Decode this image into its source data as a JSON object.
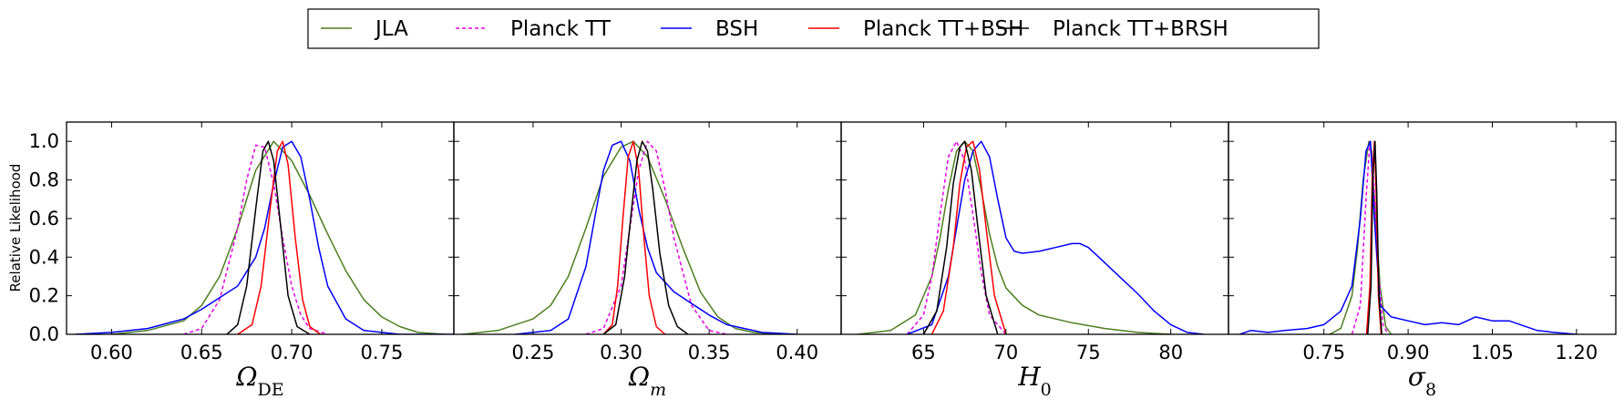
{
  "legend": [
    {
      "name": "JLA",
      "color": "#4d7f1f",
      "dashed": false
    },
    {
      "name": "Planck TT",
      "color": "#e600e6",
      "dashed": true
    },
    {
      "name": "BSH",
      "color": "#0000ff",
      "dashed": false
    },
    {
      "name": "Planck TT+BSH",
      "color": "#ff0000",
      "dashed": false
    },
    {
      "name": "Planck TT+BRSH",
      "color": "#000000",
      "dashed": false
    }
  ],
  "ylabel": "Relative Likelihood",
  "chart_data": [
    {
      "type": "line",
      "xlabel": "Ω_DE",
      "xlabel_main": "Ω",
      "xlabel_sub": "DE",
      "xlim": [
        0.575,
        0.79
      ],
      "ylim": [
        0,
        1.1
      ],
      "xticks": [
        "0.60",
        "0.65",
        "0.70",
        "0.75"
      ],
      "yticks": [
        "0.0",
        "0.2",
        "0.4",
        "0.6",
        "0.8",
        "1.0"
      ],
      "series": [
        {
          "name": "JLA",
          "x": [
            0.6,
            0.62,
            0.64,
            0.65,
            0.66,
            0.67,
            0.68,
            0.69,
            0.7,
            0.71,
            0.72,
            0.73,
            0.74,
            0.75,
            0.76,
            0.77,
            0.785
          ],
          "y": [
            0.0,
            0.02,
            0.07,
            0.15,
            0.3,
            0.55,
            0.85,
            1.0,
            0.9,
            0.72,
            0.52,
            0.33,
            0.18,
            0.09,
            0.04,
            0.01,
            0.0
          ]
        },
        {
          "name": "Planck TT",
          "x": [
            0.64,
            0.65,
            0.66,
            0.67,
            0.675,
            0.68,
            0.685,
            0.69,
            0.695,
            0.7,
            0.705,
            0.71,
            0.72
          ],
          "y": [
            0.0,
            0.03,
            0.18,
            0.55,
            0.8,
            0.98,
            0.97,
            0.78,
            0.5,
            0.25,
            0.1,
            0.03,
            0.0
          ]
        },
        {
          "name": "BSH",
          "x": [
            0.58,
            0.6,
            0.62,
            0.64,
            0.65,
            0.66,
            0.67,
            0.68,
            0.685,
            0.69,
            0.695,
            0.7,
            0.705,
            0.71,
            0.715,
            0.72,
            0.73,
            0.74,
            0.76,
            0.79
          ],
          "y": [
            0.0,
            0.01,
            0.03,
            0.08,
            0.13,
            0.19,
            0.25,
            0.4,
            0.55,
            0.78,
            0.97,
            1.0,
            0.92,
            0.7,
            0.45,
            0.25,
            0.08,
            0.02,
            0.0,
            0.0
          ]
        },
        {
          "name": "Planck TT+BSH",
          "x": [
            0.67,
            0.678,
            0.683,
            0.688,
            0.692,
            0.695,
            0.698,
            0.702,
            0.706,
            0.71,
            0.716
          ],
          "y": [
            0.0,
            0.05,
            0.25,
            0.65,
            0.95,
            1.0,
            0.88,
            0.5,
            0.18,
            0.04,
            0.0
          ]
        },
        {
          "name": "Planck TT+BRSH",
          "x": [
            0.664,
            0.67,
            0.675,
            0.68,
            0.684,
            0.687,
            0.69,
            0.694,
            0.698,
            0.703,
            0.71
          ],
          "y": [
            0.0,
            0.05,
            0.25,
            0.65,
            0.95,
            1.0,
            0.9,
            0.55,
            0.2,
            0.04,
            0.0
          ]
        }
      ]
    },
    {
      "type": "line",
      "xlabel": "Ω_m",
      "xlabel_main": "Ω",
      "xlabel_sub": "m",
      "xlim": [
        0.205,
        0.425
      ],
      "ylim": [
        0,
        1.1
      ],
      "xticks": [
        "0.25",
        "0.30",
        "0.35",
        "0.40"
      ],
      "yticks": [],
      "series": [
        {
          "name": "JLA",
          "x": [
            0.21,
            0.23,
            0.25,
            0.26,
            0.27,
            0.28,
            0.29,
            0.3,
            0.307,
            0.315,
            0.325,
            0.335,
            0.345,
            0.355,
            0.365,
            0.375,
            0.39
          ],
          "y": [
            0.0,
            0.02,
            0.08,
            0.15,
            0.3,
            0.55,
            0.82,
            0.97,
            1.0,
            0.92,
            0.7,
            0.45,
            0.22,
            0.09,
            0.03,
            0.01,
            0.0
          ]
        },
        {
          "name": "Planck TT",
          "x": [
            0.28,
            0.29,
            0.3,
            0.305,
            0.31,
            0.315,
            0.32,
            0.325,
            0.33,
            0.34,
            0.35,
            0.36
          ],
          "y": [
            0.0,
            0.03,
            0.25,
            0.55,
            0.85,
            1.0,
            0.95,
            0.75,
            0.5,
            0.15,
            0.02,
            0.0
          ]
        },
        {
          "name": "BSH",
          "x": [
            0.24,
            0.26,
            0.27,
            0.28,
            0.285,
            0.29,
            0.295,
            0.3,
            0.305,
            0.31,
            0.315,
            0.32,
            0.33,
            0.34,
            0.35,
            0.36,
            0.38,
            0.4
          ],
          "y": [
            0.0,
            0.02,
            0.08,
            0.35,
            0.6,
            0.85,
            0.98,
            1.0,
            0.9,
            0.65,
            0.45,
            0.32,
            0.22,
            0.16,
            0.1,
            0.05,
            0.01,
            0.0
          ]
        },
        {
          "name": "Planck TT+BSH",
          "x": [
            0.29,
            0.295,
            0.298,
            0.301,
            0.304,
            0.307,
            0.31,
            0.313,
            0.316,
            0.32,
            0.325
          ],
          "y": [
            0.0,
            0.05,
            0.25,
            0.6,
            0.92,
            1.0,
            0.85,
            0.5,
            0.2,
            0.04,
            0.0
          ]
        },
        {
          "name": "Planck TT+BRSH",
          "x": [
            0.29,
            0.297,
            0.302,
            0.306,
            0.309,
            0.312,
            0.315,
            0.318,
            0.322,
            0.327,
            0.332,
            0.338
          ],
          "y": [
            0.0,
            0.05,
            0.3,
            0.65,
            0.9,
            1.0,
            0.95,
            0.75,
            0.42,
            0.15,
            0.04,
            0.0
          ]
        }
      ]
    },
    {
      "type": "line",
      "xlabel": "H_0",
      "xlabel_main": "H",
      "xlabel_sub": "0",
      "xlim": [
        60.0,
        83.5
      ],
      "ylim": [
        0,
        1.1
      ],
      "xticks": [
        "65",
        "70",
        "75",
        "80"
      ],
      "yticks": [],
      "series": [
        {
          "name": "JLA",
          "x": [
            61.0,
            63.0,
            64.5,
            65.5,
            66.0,
            66.5,
            67.0,
            67.5,
            68.0,
            68.5,
            69.0,
            69.5,
            70.0,
            71.0,
            72.0,
            74.0,
            76.0,
            78.0,
            80.0
          ],
          "y": [
            0.0,
            0.02,
            0.1,
            0.3,
            0.5,
            0.75,
            0.95,
            1.0,
            0.95,
            0.75,
            0.52,
            0.35,
            0.24,
            0.15,
            0.1,
            0.06,
            0.03,
            0.01,
            0.0
          ]
        },
        {
          "name": "Planck TT",
          "x": [
            64.0,
            65.0,
            65.5,
            66.0,
            66.5,
            67.0,
            67.5,
            68.0,
            68.5,
            69.0,
            70.0
          ],
          "y": [
            0.0,
            0.1,
            0.3,
            0.62,
            0.92,
            1.0,
            0.9,
            0.62,
            0.32,
            0.1,
            0.0
          ]
        },
        {
          "name": "BSH",
          "x": [
            64.0,
            65.5,
            66.5,
            67.5,
            68.0,
            68.5,
            69.0,
            69.5,
            70.0,
            70.5,
            71.0,
            72.0,
            73.0,
            74.0,
            74.5,
            75.0,
            76.0,
            77.0,
            78.0,
            79.0,
            80.0,
            81.0,
            82.0
          ],
          "y": [
            0.0,
            0.05,
            0.3,
            0.8,
            0.95,
            1.0,
            0.92,
            0.7,
            0.5,
            0.43,
            0.42,
            0.43,
            0.45,
            0.47,
            0.47,
            0.45,
            0.37,
            0.29,
            0.21,
            0.12,
            0.05,
            0.01,
            0.0
          ]
        },
        {
          "name": "Planck TT+BSH",
          "x": [
            65.5,
            66.2,
            66.8,
            67.2,
            67.6,
            68.0,
            68.4,
            68.8,
            69.3,
            70.0
          ],
          "y": [
            0.0,
            0.12,
            0.45,
            0.78,
            0.97,
            1.0,
            0.85,
            0.55,
            0.2,
            0.0
          ]
        },
        {
          "name": "Planck TT+BRSH",
          "x": [
            65.0,
            65.8,
            66.4,
            66.8,
            67.2,
            67.5,
            67.9,
            68.3,
            68.8,
            69.5
          ],
          "y": [
            0.0,
            0.12,
            0.45,
            0.78,
            0.97,
            1.0,
            0.85,
            0.55,
            0.2,
            0.0
          ]
        }
      ]
    },
    {
      "type": "line",
      "xlabel": "σ_8",
      "xlabel_main": "σ",
      "xlabel_sub": "8",
      "xlim": [
        0.58,
        1.27
      ],
      "ylim": [
        0,
        1.1
      ],
      "xticks": [
        "0.75",
        "0.90",
        "1.05",
        "1.20"
      ],
      "yticks": [],
      "series": [
        {
          "name": "JLA",
          "x": [
            0.76,
            0.78,
            0.8,
            0.81,
            0.82,
            0.83,
            0.835,
            0.84,
            0.85,
            0.86,
            0.87
          ],
          "y": [
            0.0,
            0.03,
            0.2,
            0.45,
            0.8,
            1.0,
            0.95,
            0.7,
            0.25,
            0.04,
            0.0
          ]
        },
        {
          "name": "Planck TT",
          "x": [
            0.8,
            0.815,
            0.825,
            0.832,
            0.838,
            0.845,
            0.855,
            0.865
          ],
          "y": [
            0.0,
            0.15,
            0.7,
            1.0,
            0.85,
            0.4,
            0.05,
            0.0
          ]
        },
        {
          "name": "BSH",
          "x": [
            0.6,
            0.62,
            0.65,
            0.68,
            0.72,
            0.75,
            0.78,
            0.8,
            0.815,
            0.825,
            0.833,
            0.84,
            0.85,
            0.87,
            0.9,
            0.93,
            0.96,
            0.99,
            1.02,
            1.05,
            1.08,
            1.1,
            1.13,
            1.16,
            1.2
          ],
          "y": [
            0.0,
            0.02,
            0.01,
            0.02,
            0.03,
            0.05,
            0.12,
            0.25,
            0.6,
            0.95,
            1.0,
            0.6,
            0.15,
            0.09,
            0.07,
            0.05,
            0.06,
            0.05,
            0.09,
            0.07,
            0.07,
            0.05,
            0.02,
            0.01,
            0.0
          ]
        },
        {
          "name": "Planck TT+BSH",
          "x": [
            0.826,
            0.832,
            0.836,
            0.84,
            0.843,
            0.847,
            0.852
          ],
          "y": [
            0.0,
            0.25,
            0.8,
            1.0,
            0.75,
            0.2,
            0.0
          ]
        },
        {
          "name": "Planck TT+BRSH",
          "x": [
            0.828,
            0.834,
            0.837,
            0.841,
            0.844,
            0.848,
            0.853
          ],
          "y": [
            0.0,
            0.25,
            0.8,
            1.0,
            0.75,
            0.2,
            0.0
          ]
        }
      ]
    }
  ]
}
